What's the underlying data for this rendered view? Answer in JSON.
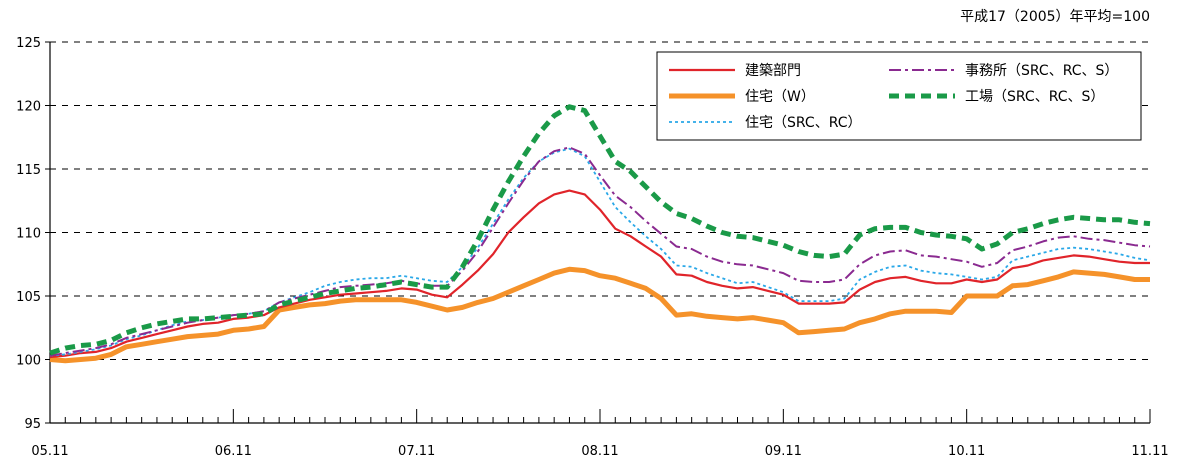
{
  "note": "平成17（2005）年平均=100",
  "chart_data": {
    "type": "line",
    "title": "",
    "xlabel": "",
    "ylabel": "",
    "ylim": [
      95,
      125
    ],
    "yticks": [
      95,
      100,
      105,
      110,
      115,
      120,
      125
    ],
    "grid": "horizontal-dashed",
    "legend_position": "top-right",
    "x_tick_labels": [
      "05.11",
      "06.11",
      "07.11",
      "08.11",
      "09.11",
      "10.11",
      "11.11"
    ],
    "x_tick_index": [
      0,
      12,
      24,
      36,
      48,
      60,
      72
    ],
    "series": [
      {
        "name": "建築部門",
        "color": "#e0242a",
        "style": "solid",
        "values": [
          100.2,
          100.3,
          100.5,
          100.6,
          100.9,
          101.4,
          101.7,
          102.0,
          102.3,
          102.6,
          102.8,
          102.9,
          103.2,
          103.3,
          103.5,
          104.1,
          104.4,
          104.7,
          104.9,
          105.1,
          105.2,
          105.3,
          105.4,
          105.6,
          105.5,
          105.1,
          104.9,
          105.9,
          107.0,
          108.3,
          110.0,
          111.2,
          112.3,
          113.0,
          113.3,
          113.0,
          111.8,
          110.3,
          109.7,
          108.9,
          108.1,
          106.7,
          106.6,
          106.1,
          105.8,
          105.6,
          105.7,
          105.4,
          105.1,
          104.4,
          104.4,
          104.4,
          104.5,
          105.5,
          106.1,
          106.4,
          106.5,
          106.2,
          106.0,
          106.0,
          106.3,
          106.1,
          106.3,
          107.2,
          107.4,
          107.8,
          108.0,
          108.2,
          108.1,
          107.9,
          107.7,
          107.6,
          107.6
        ]
      },
      {
        "name": "住宅（W）",
        "color": "#f5922a",
        "style": "thick",
        "values": [
          100.0,
          99.9,
          100.0,
          100.1,
          100.4,
          101.0,
          101.2,
          101.4,
          101.6,
          101.8,
          101.9,
          102.0,
          102.3,
          102.4,
          102.6,
          103.9,
          104.1,
          104.3,
          104.4,
          104.6,
          104.7,
          104.7,
          104.7,
          104.7,
          104.5,
          104.2,
          103.9,
          104.1,
          104.5,
          104.8,
          105.3,
          105.8,
          106.3,
          106.8,
          107.1,
          107.0,
          106.6,
          106.4,
          106.0,
          105.6,
          104.8,
          103.5,
          103.6,
          103.4,
          103.3,
          103.2,
          103.3,
          103.1,
          102.9,
          102.1,
          102.2,
          102.3,
          102.4,
          102.9,
          103.2,
          103.6,
          103.8,
          103.8,
          103.8,
          103.7,
          105.0,
          105.0,
          105.0,
          105.8,
          105.9,
          106.2,
          106.5,
          106.9,
          106.8,
          106.7,
          106.5,
          106.3,
          106.3
        ]
      },
      {
        "name": "住宅（SRC、RC）",
        "color": "#2aa8e8",
        "style": "dotted",
        "values": [
          100.3,
          100.4,
          100.6,
          100.8,
          101.1,
          101.6,
          101.9,
          102.3,
          102.7,
          103.0,
          103.1,
          103.3,
          103.5,
          103.6,
          103.8,
          104.5,
          104.9,
          105.3,
          105.8,
          106.1,
          106.3,
          106.4,
          106.4,
          106.6,
          106.4,
          106.2,
          106.1,
          107.3,
          108.8,
          110.7,
          112.6,
          114.3,
          115.6,
          116.3,
          116.6,
          116.0,
          114.0,
          112.0,
          110.8,
          109.7,
          108.7,
          107.4,
          107.3,
          106.8,
          106.4,
          106.0,
          106.1,
          105.7,
          105.3,
          104.6,
          104.6,
          104.6,
          104.8,
          106.3,
          106.9,
          107.3,
          107.4,
          107.0,
          106.8,
          106.7,
          106.5,
          106.3,
          106.5,
          107.8,
          108.1,
          108.4,
          108.7,
          108.8,
          108.7,
          108.5,
          108.3,
          108.0,
          107.8
        ]
      },
      {
        "name": "事務所（SRC、RC、S）",
        "color": "#8a2a90",
        "style": "dashdot",
        "values": [
          100.3,
          100.5,
          100.7,
          100.9,
          101.2,
          101.7,
          102.0,
          102.3,
          102.6,
          102.9,
          103.1,
          103.3,
          103.5,
          103.6,
          103.8,
          104.5,
          104.8,
          105.1,
          105.4,
          105.7,
          105.8,
          105.9,
          106.0,
          106.2,
          106.0,
          105.8,
          105.8,
          107.0,
          108.5,
          110.4,
          112.3,
          114.1,
          115.6,
          116.4,
          116.7,
          116.2,
          114.5,
          112.9,
          112.0,
          110.9,
          109.9,
          108.9,
          108.7,
          108.1,
          107.7,
          107.5,
          107.4,
          107.1,
          106.8,
          106.2,
          106.1,
          106.1,
          106.3,
          107.5,
          108.2,
          108.5,
          108.6,
          108.2,
          108.1,
          107.9,
          107.7,
          107.3,
          107.6,
          108.6,
          108.9,
          109.3,
          109.6,
          109.7,
          109.5,
          109.4,
          109.2,
          109.0,
          108.9
        ]
      },
      {
        "name": "工場（SRC、RC、S）",
        "color": "#1a9a48",
        "style": "bold-dashed",
        "values": [
          100.5,
          100.9,
          101.1,
          101.2,
          101.5,
          102.1,
          102.5,
          102.8,
          103.0,
          103.2,
          103.2,
          103.3,
          103.4,
          103.5,
          103.6,
          104.3,
          104.6,
          104.9,
          105.2,
          105.4,
          105.6,
          105.7,
          105.9,
          106.1,
          105.9,
          105.7,
          105.7,
          107.3,
          109.4,
          111.8,
          114.0,
          116.0,
          117.8,
          119.2,
          119.9,
          119.6,
          117.6,
          115.6,
          114.8,
          113.6,
          112.4,
          111.5,
          111.1,
          110.5,
          110.0,
          109.7,
          109.6,
          109.3,
          109.0,
          108.5,
          108.2,
          108.1,
          108.3,
          109.8,
          110.3,
          110.4,
          110.4,
          110.0,
          109.8,
          109.7,
          109.5,
          108.7,
          109.1,
          110.0,
          110.3,
          110.7,
          111.0,
          111.2,
          111.1,
          111.0,
          111.0,
          110.8,
          110.7
        ]
      }
    ]
  }
}
